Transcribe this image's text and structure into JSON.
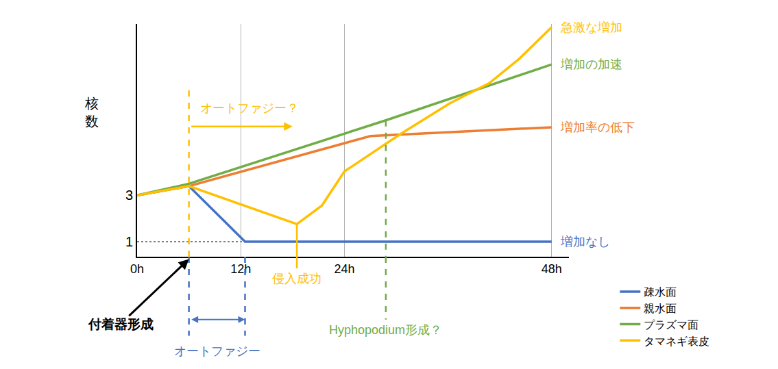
{
  "chart_data": {
    "type": "line",
    "y_label": "核数",
    "xlim": [
      0,
      50
    ],
    "xticks": [
      {
        "value": 0,
        "label": "0h"
      },
      {
        "value": 12,
        "label": "12h"
      },
      {
        "value": 24,
        "label": "24h"
      },
      {
        "value": 48,
        "label": "48h"
      }
    ],
    "ylim": [
      0.35,
      10.4
    ],
    "yticks": [
      1,
      3
    ],
    "grid": "x",
    "legend": "bottom right",
    "series": [
      {
        "name": "疎水面",
        "color": "#4472c4",
        "x": [
          0,
          6,
          12.5,
          48
        ],
        "values": [
          3,
          3.4,
          1,
          1
        ],
        "end_label": "増加なし"
      },
      {
        "name": "親水面",
        "color": "#ed7d31",
        "x": [
          0,
          6,
          27,
          48
        ],
        "values": [
          3,
          3.4,
          5.56,
          5.94
        ],
        "end_label": "増加率の低下"
      },
      {
        "name": "プラズマ面",
        "color": "#70ad47",
        "x": [
          0,
          6,
          28.8,
          48
        ],
        "values": [
          3,
          3.5,
          6.24,
          8.65
        ],
        "end_label": "増加の加速"
      },
      {
        "name": "タマネギ表皮",
        "color": "#ffc000",
        "x": [
          0,
          6,
          18.5,
          21.4,
          24,
          30.5,
          36.2,
          40.8,
          44.2,
          48
        ],
        "values": [
          3,
          3.4,
          1.76,
          2.56,
          4.03,
          5.65,
          6.97,
          7.85,
          8.88,
          10.26
        ],
        "end_label": "急激な増加"
      }
    ],
    "reference_lines": [
      {
        "y": 1,
        "x": [
          0,
          12.5
        ],
        "line_style": "dotted"
      }
    ],
    "annotations": [
      {
        "text": "オートファジー？",
        "x": [
          6,
          18
        ],
        "color": "#ffc000"
      },
      {
        "text": "侵入成功",
        "x": 18.5,
        "color": "#ffc000"
      },
      {
        "text": "Hyphopodium形成？",
        "x": 28.8,
        "color": "#70ad47"
      },
      {
        "text": "オートファジー",
        "x": [
          6,
          12.5
        ],
        "color": "#4472c4"
      },
      {
        "text": "付着器形成",
        "x": 6,
        "color": "#000000"
      }
    ]
  }
}
